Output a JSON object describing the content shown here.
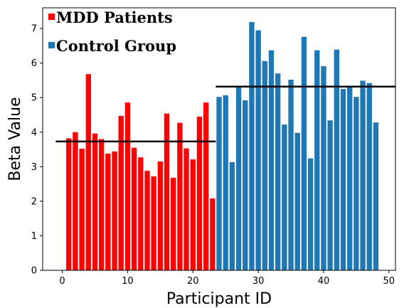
{
  "chart_data": {
    "type": "bar",
    "xlabel": "Participant ID",
    "ylabel": "Beta Value",
    "xlim": [
      -3,
      51
    ],
    "ylim": [
      0,
      7.6
    ],
    "xticks": [
      "0",
      "10",
      "20",
      "30",
      "40",
      "50"
    ],
    "yticks": [
      "0",
      "1",
      "2",
      "3",
      "4",
      "5",
      "6",
      "7"
    ],
    "grid": false,
    "legend_position": "top-left",
    "series": [
      {
        "name": "MDD Patients",
        "color": "#ff0000",
        "x": [
          1,
          2,
          3,
          4,
          5,
          6,
          7,
          8,
          9,
          10,
          11,
          12,
          13,
          14,
          15,
          16,
          17,
          18,
          19,
          20,
          21,
          22,
          23
        ],
        "values": [
          3.82,
          4.0,
          3.52,
          5.68,
          3.96,
          3.8,
          3.38,
          3.44,
          4.47,
          4.86,
          3.55,
          3.27,
          2.88,
          2.72,
          3.15,
          4.54,
          2.68,
          4.27,
          3.53,
          3.21,
          4.45,
          4.86,
          2.08
        ],
        "mean": 3.73
      },
      {
        "name": "Control Group",
        "color": "#1f77b4",
        "x": [
          24,
          25,
          26,
          27,
          28,
          29,
          30,
          31,
          32,
          33,
          34,
          35,
          36,
          37,
          38,
          39,
          40,
          41,
          42,
          43,
          44,
          45,
          46,
          47,
          48
        ],
        "values": [
          5.02,
          5.07,
          3.13,
          5.3,
          4.92,
          7.19,
          6.95,
          6.06,
          6.37,
          5.7,
          4.22,
          5.52,
          3.98,
          6.76,
          3.24,
          6.37,
          5.91,
          4.34,
          6.39,
          5.25,
          5.31,
          5.02,
          5.49,
          5.42,
          4.28
        ],
        "mean": 5.32
      }
    ]
  }
}
